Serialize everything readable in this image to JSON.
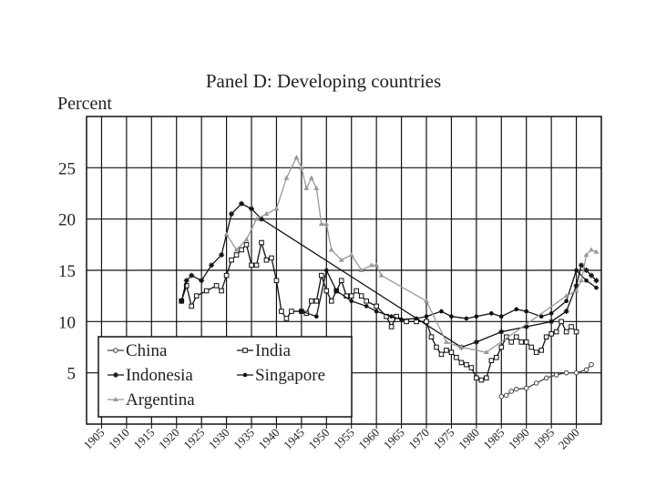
{
  "chart_data": {
    "type": "line",
    "title": "Panel D: Developing countries",
    "y_label": "Percent",
    "xlim": [
      1902,
      2005
    ],
    "ylim": [
      0,
      30
    ],
    "xticks": [
      1905,
      1910,
      1915,
      1920,
      1925,
      1930,
      1935,
      1940,
      1945,
      1950,
      1955,
      1960,
      1965,
      1970,
      1975,
      1980,
      1985,
      1990,
      1995,
      2000
    ],
    "yticks": [
      5,
      10,
      15,
      20,
      25
    ],
    "grid": true,
    "legend": "lower left",
    "series": [
      {
        "name": "China",
        "color": "#444444",
        "marker": "open-circle",
        "x": [
          1985,
          1986,
          1987,
          1988,
          1990,
          1992,
          1994,
          1996,
          1998,
          2000,
          2002,
          2003
        ],
        "values": [
          2.7,
          2.8,
          3.2,
          3.4,
          3.5,
          4.0,
          4.5,
          4.8,
          5.0,
          5.0,
          5.3,
          5.8
        ]
      },
      {
        "name": "India",
        "color": "#111111",
        "marker": "open-square",
        "x": [
          1921,
          1922,
          1923,
          1924,
          1926,
          1928,
          1929,
          1930,
          1931,
          1932,
          1933,
          1934,
          1935,
          1936,
          1937,
          1938,
          1939,
          1940,
          1941,
          1942,
          1943,
          1945,
          1946,
          1947,
          1948,
          1949,
          1950,
          1951,
          1952,
          1953,
          1954,
          1955,
          1956,
          1957,
          1958,
          1960,
          1962,
          1963,
          1964,
          1966,
          1968,
          1970,
          1971,
          1972,
          1973,
          1974,
          1975,
          1976,
          1977,
          1978,
          1979,
          1980,
          1981,
          1982,
          1983,
          1984,
          1985,
          1986,
          1987,
          1988,
          1989,
          1990,
          1991,
          1992,
          1993,
          1994,
          1995,
          1996,
          1997,
          1998,
          1999,
          2000
        ],
        "values": [
          12,
          13.5,
          11.5,
          12.5,
          13,
          13.5,
          13,
          14.5,
          16,
          16.5,
          17,
          17.5,
          15.5,
          15.5,
          17.7,
          16,
          16.2,
          14,
          11,
          10.3,
          11,
          11,
          10.8,
          12,
          12,
          14.5,
          13,
          12,
          13,
          14,
          12.5,
          12.5,
          13,
          12.5,
          12,
          11.5,
          10.5,
          9.5,
          10.5,
          10,
          10,
          10,
          8.5,
          7.5,
          6.8,
          7.2,
          7,
          6.5,
          6,
          5.8,
          5.5,
          4.5,
          4.3,
          4.5,
          6.2,
          6.5,
          7.5,
          8.5,
          8,
          8.5,
          8,
          8,
          7.5,
          7,
          7.2,
          8.5,
          8.8,
          9,
          10,
          9,
          9.5,
          9
        ]
      },
      {
        "name": "Indonesia",
        "color": "#111111",
        "marker": "star",
        "x": [
          1921,
          1922,
          1923,
          1925,
          1927,
          1929,
          1931,
          1933,
          1935,
          1937,
          1977,
          1980,
          1985,
          1990,
          1995,
          1998,
          2000,
          2001,
          2002,
          2003,
          2004
        ],
        "values": [
          12,
          14,
          14.5,
          14,
          15.5,
          16.5,
          20.5,
          21.5,
          21,
          20,
          7.5,
          8,
          9,
          9.5,
          10,
          11,
          13.5,
          15.5,
          15,
          14.5,
          14
        ]
      },
      {
        "name": "Singapore",
        "color": "#111111",
        "marker": "dot",
        "x": [
          1945,
          1948,
          1950,
          1952,
          1955,
          1958,
          1960,
          1963,
          1965,
          1968,
          1970,
          1973,
          1975,
          1978,
          1980,
          1983,
          1985,
          1988,
          1990,
          1993,
          1995,
          1998,
          2000,
          2002,
          2004
        ],
        "values": [
          11,
          10.5,
          15,
          13,
          12,
          11.5,
          11,
          10.5,
          10.2,
          10.3,
          10.5,
          11,
          10.5,
          10.3,
          10.5,
          10.8,
          10.5,
          11.2,
          11,
          10.5,
          10.8,
          12,
          15,
          14,
          13.3
        ]
      },
      {
        "name": "Argentina",
        "color": "#999999",
        "marker": "triangle",
        "x": [
          1930,
          1932,
          1934,
          1936,
          1938,
          1940,
          1942,
          1944,
          1945,
          1946,
          1947,
          1948,
          1949,
          1950,
          1951,
          1953,
          1955,
          1957,
          1959,
          1960,
          1961,
          1970,
          1974,
          1977,
          1982,
          1998,
          2000,
          2001,
          2002,
          2003,
          2004
        ],
        "values": [
          18.5,
          17,
          18,
          20,
          20.5,
          21,
          24,
          26,
          25,
          23,
          24,
          23,
          19.5,
          19.5,
          17,
          16,
          16.5,
          15,
          15.5,
          15.5,
          14.5,
          12,
          8,
          7.5,
          7,
          12.5,
          13,
          14,
          16.5,
          17,
          16.8
        ]
      }
    ]
  }
}
